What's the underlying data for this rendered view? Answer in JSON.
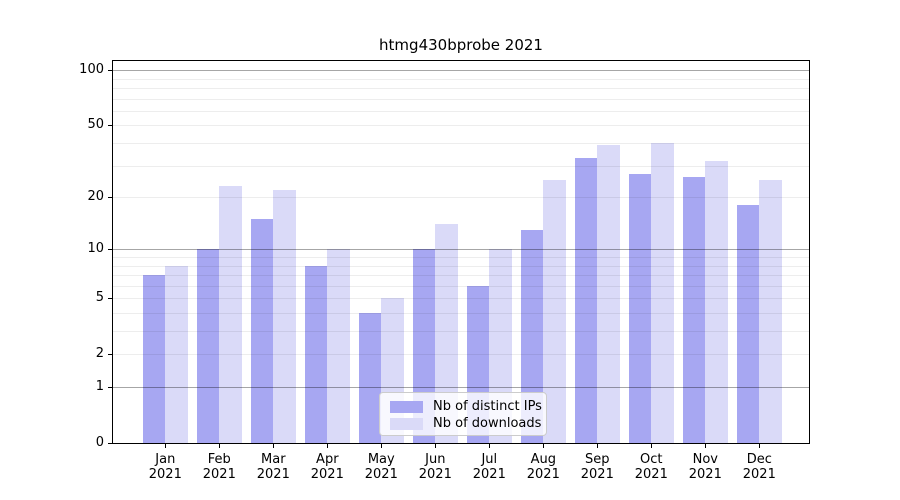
{
  "chart_data": {
    "type": "bar",
    "title": "htmg430bprobe 2021",
    "categories": [
      "Jan",
      "Feb",
      "Mar",
      "Apr",
      "May",
      "Jun",
      "Jul",
      "Aug",
      "Sep",
      "Oct",
      "Nov",
      "Dec"
    ],
    "category_year": "2021",
    "series": [
      {
        "name": "Nb of distinct IPs",
        "color": "#a7a7f2",
        "values": [
          7,
          10,
          15,
          8,
          4,
          10,
          6,
          13,
          33,
          27,
          26,
          18
        ]
      },
      {
        "name": "Nb of downloads",
        "color": "#dadaf8",
        "values": [
          8,
          23,
          22,
          10,
          5,
          14,
          10,
          25,
          39,
          40,
          32,
          25
        ]
      }
    ],
    "xlabel": "",
    "ylabel": "",
    "yscale": "log1p",
    "ylim": [
      0,
      112
    ],
    "yticks": [
      0,
      1,
      2,
      5,
      10,
      20,
      50,
      100
    ],
    "y_major_gridlines": [
      1,
      10,
      100
    ],
    "y_minor_gridlines": [
      2,
      3,
      4,
      5,
      6,
      7,
      8,
      9,
      20,
      30,
      40,
      50,
      60,
      70,
      80,
      90
    ],
    "grid": true,
    "legend_position": "lower center",
    "colors": {
      "background": "#ffffff",
      "axis": "#000000",
      "text": "#000000",
      "major_grid": "#a6a6a6",
      "minor_grid": "#ececec"
    }
  }
}
